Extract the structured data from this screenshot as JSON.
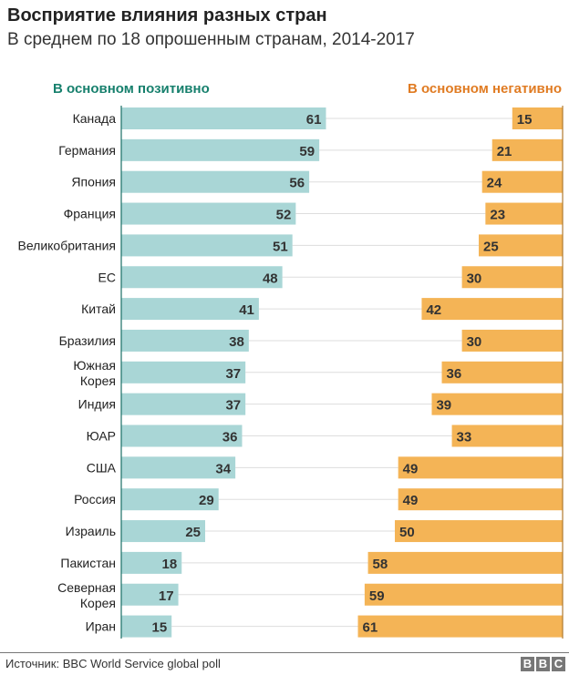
{
  "title": "Восприятие влияния разных стран",
  "subtitle": "В среднем по 18 опрошенным странам, 2014-2017",
  "source": "Источник: BBC World Service global poll",
  "logo": "BBC",
  "colors": {
    "positive": "#a9d6d6",
    "negative": "#f4b456",
    "positive_label": "#17806d",
    "negative_label": "#e07b22"
  },
  "chart_data": {
    "type": "bar",
    "title": "Восприятие влияния разных стран",
    "subtitle": "В среднем по 18 опрошенным странам, 2014-2017",
    "categories": [
      "Канада",
      "Германия",
      "Япония",
      "Франция",
      "Великобритания",
      "ЕС",
      "Китай",
      "Бразилия",
      "Южная Корея",
      "Индия",
      "ЮАР",
      "США",
      "Россия",
      "Израиль",
      "Пакистан",
      "Северная Корея",
      "Иран"
    ],
    "series": [
      {
        "name": "В основном позитивно",
        "values": [
          61,
          59,
          56,
          52,
          51,
          48,
          41,
          38,
          37,
          37,
          36,
          34,
          29,
          25,
          18,
          17,
          15
        ]
      },
      {
        "name": "В основном негативно",
        "values": [
          15,
          21,
          24,
          23,
          25,
          30,
          42,
          30,
          36,
          39,
          33,
          49,
          49,
          50,
          58,
          59,
          61
        ]
      }
    ],
    "legend": "top"
  }
}
